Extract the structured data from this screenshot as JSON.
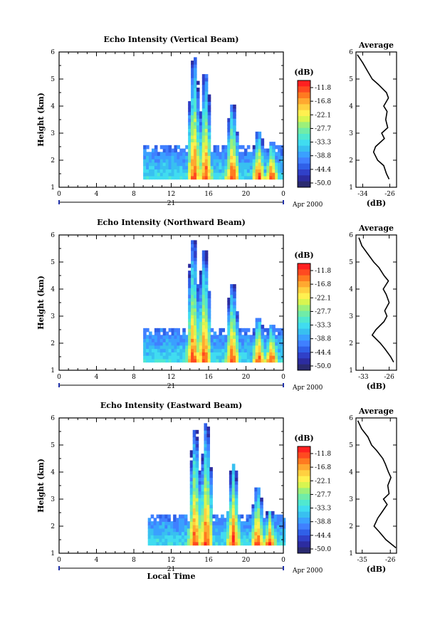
{
  "figure": {
    "xlabel": "Local Time",
    "date_label": "21",
    "month_year_label": "Apr 2000",
    "colorbar_unit": "(dB)",
    "avg_title": "Average",
    "avg_xlabel": "(dB)"
  },
  "colorbar": {
    "ticks": [
      "-11.8",
      "-16.8",
      "-22.1",
      "-27.7",
      "-33.3",
      "-38.8",
      "-44.4",
      "-50.0"
    ],
    "colors": [
      "#ff2020",
      "#ff4a20",
      "#ff7a20",
      "#ffa830",
      "#ffd040",
      "#fff050",
      "#d8f550",
      "#9cf07a",
      "#70eca8",
      "#50e8d0",
      "#40dcf0",
      "#38c0f0",
      "#3aa0ff",
      "#4080ff",
      "#3060e8",
      "#3040c8",
      "#2c2ca0",
      "#2a2a70"
    ]
  },
  "chart_data": [
    {
      "type": "heatmap",
      "title": "Echo Intensity (Vertical Beam)",
      "ylabel": "Height (km)",
      "xlabel": "",
      "x_ticks": [
        "0",
        "4",
        "8",
        "12",
        "16",
        "20",
        "0"
      ],
      "y_ticks": [
        "1",
        "2",
        "3",
        "4",
        "5",
        "6"
      ],
      "xlim": [
        0,
        24
      ],
      "ylim": [
        1,
        6
      ],
      "data_start_hour": 9.0,
      "low_layer_top_km": 2.5,
      "echo_towers": [
        {
          "hour": 14.3,
          "top_km": 5.7
        },
        {
          "hour": 15.5,
          "top_km": 5.1
        },
        {
          "hour": 18.4,
          "top_km": 4.0
        },
        {
          "hour": 21.2,
          "top_km": 3.0
        },
        {
          "hour": 22.6,
          "top_km": 2.6
        }
      ],
      "average_profile": {
        "xlabel": "(dB)",
        "x_ticks": [
          "-34",
          "-26"
        ],
        "xlim": [
          -36,
          -24
        ],
        "heights_km": [
          1.3,
          1.5,
          1.8,
          2.0,
          2.3,
          2.5,
          2.8,
          3.0,
          3.2,
          3.5,
          3.8,
          4.0,
          4.3,
          4.5,
          4.8,
          5.0,
          5.3,
          5.6,
          5.9
        ],
        "values_db": [
          -26.2,
          -27.0,
          -27.8,
          -29.6,
          -30.8,
          -30.2,
          -27.6,
          -28.4,
          -26.6,
          -27.2,
          -26.8,
          -27.8,
          -26.4,
          -27.0,
          -29.4,
          -31.2,
          -32.6,
          -34.0,
          -35.6
        ]
      }
    },
    {
      "type": "heatmap",
      "title": "Echo Intensity (Northward Beam)",
      "ylabel": "Height (km)",
      "xlabel": "",
      "x_ticks": [
        "0",
        "4",
        "8",
        "12",
        "16",
        "20",
        "0"
      ],
      "y_ticks": [
        "1",
        "2",
        "3",
        "4",
        "5",
        "6"
      ],
      "xlim": [
        0,
        24
      ],
      "ylim": [
        1,
        6
      ],
      "data_start_hour": 9.0,
      "low_layer_top_km": 2.5,
      "echo_towers": [
        {
          "hour": 14.2,
          "top_km": 5.7
        },
        {
          "hour": 15.4,
          "top_km": 5.4
        },
        {
          "hour": 18.4,
          "top_km": 4.1
        },
        {
          "hour": 21.2,
          "top_km": 2.9
        },
        {
          "hour": 22.6,
          "top_km": 2.6
        }
      ],
      "average_profile": {
        "xlabel": "(dB)",
        "x_ticks": [
          "-33",
          "-26"
        ],
        "xlim": [
          -35,
          -24
        ],
        "heights_km": [
          1.3,
          1.5,
          1.8,
          2.0,
          2.3,
          2.5,
          2.8,
          3.0,
          3.2,
          3.5,
          3.8,
          4.0,
          4.3,
          4.5,
          4.8,
          5.0,
          5.3,
          5.6,
          5.9
        ],
        "values_db": [
          -24.8,
          -25.6,
          -27.2,
          -28.4,
          -30.6,
          -29.6,
          -27.4,
          -26.6,
          -27.2,
          -26.0,
          -26.8,
          -27.6,
          -26.2,
          -27.4,
          -28.8,
          -30.2,
          -31.8,
          -33.4,
          -34.2
        ]
      }
    },
    {
      "type": "heatmap",
      "title": "Echo Intensity (Eastward Beam)",
      "ylabel": "Height (km)",
      "xlabel": "Local Time",
      "x_ticks": [
        "0",
        "4",
        "8",
        "12",
        "16",
        "20",
        "0"
      ],
      "y_ticks": [
        "1",
        "2",
        "3",
        "4",
        "5",
        "6"
      ],
      "xlim": [
        0,
        24
      ],
      "ylim": [
        1,
        6
      ],
      "data_start_hour": 9.5,
      "low_layer_top_km": 2.4,
      "echo_towers": [
        {
          "hour": 14.4,
          "top_km": 5.5
        },
        {
          "hour": 15.6,
          "top_km": 5.7
        },
        {
          "hour": 18.5,
          "top_km": 4.2
        },
        {
          "hour": 21.1,
          "top_km": 3.4
        },
        {
          "hour": 22.4,
          "top_km": 2.5
        }
      ],
      "average_profile": {
        "xlabel": "(dB)",
        "x_ticks": [
          "-35",
          "-26"
        ],
        "xlim": [
          -37,
          -24
        ],
        "heights_km": [
          1.2,
          1.5,
          1.8,
          2.0,
          2.3,
          2.5,
          2.8,
          3.0,
          3.2,
          3.5,
          3.8,
          4.0,
          4.3,
          4.5,
          4.8,
          5.0,
          5.3,
          5.6,
          5.9
        ],
        "values_db": [
          -24.2,
          -27.4,
          -29.6,
          -31.2,
          -30.0,
          -28.8,
          -27.0,
          -28.2,
          -26.4,
          -26.8,
          -25.8,
          -26.6,
          -27.6,
          -28.4,
          -30.4,
          -32.0,
          -33.2,
          -35.2,
          -36.4
        ]
      }
    }
  ]
}
